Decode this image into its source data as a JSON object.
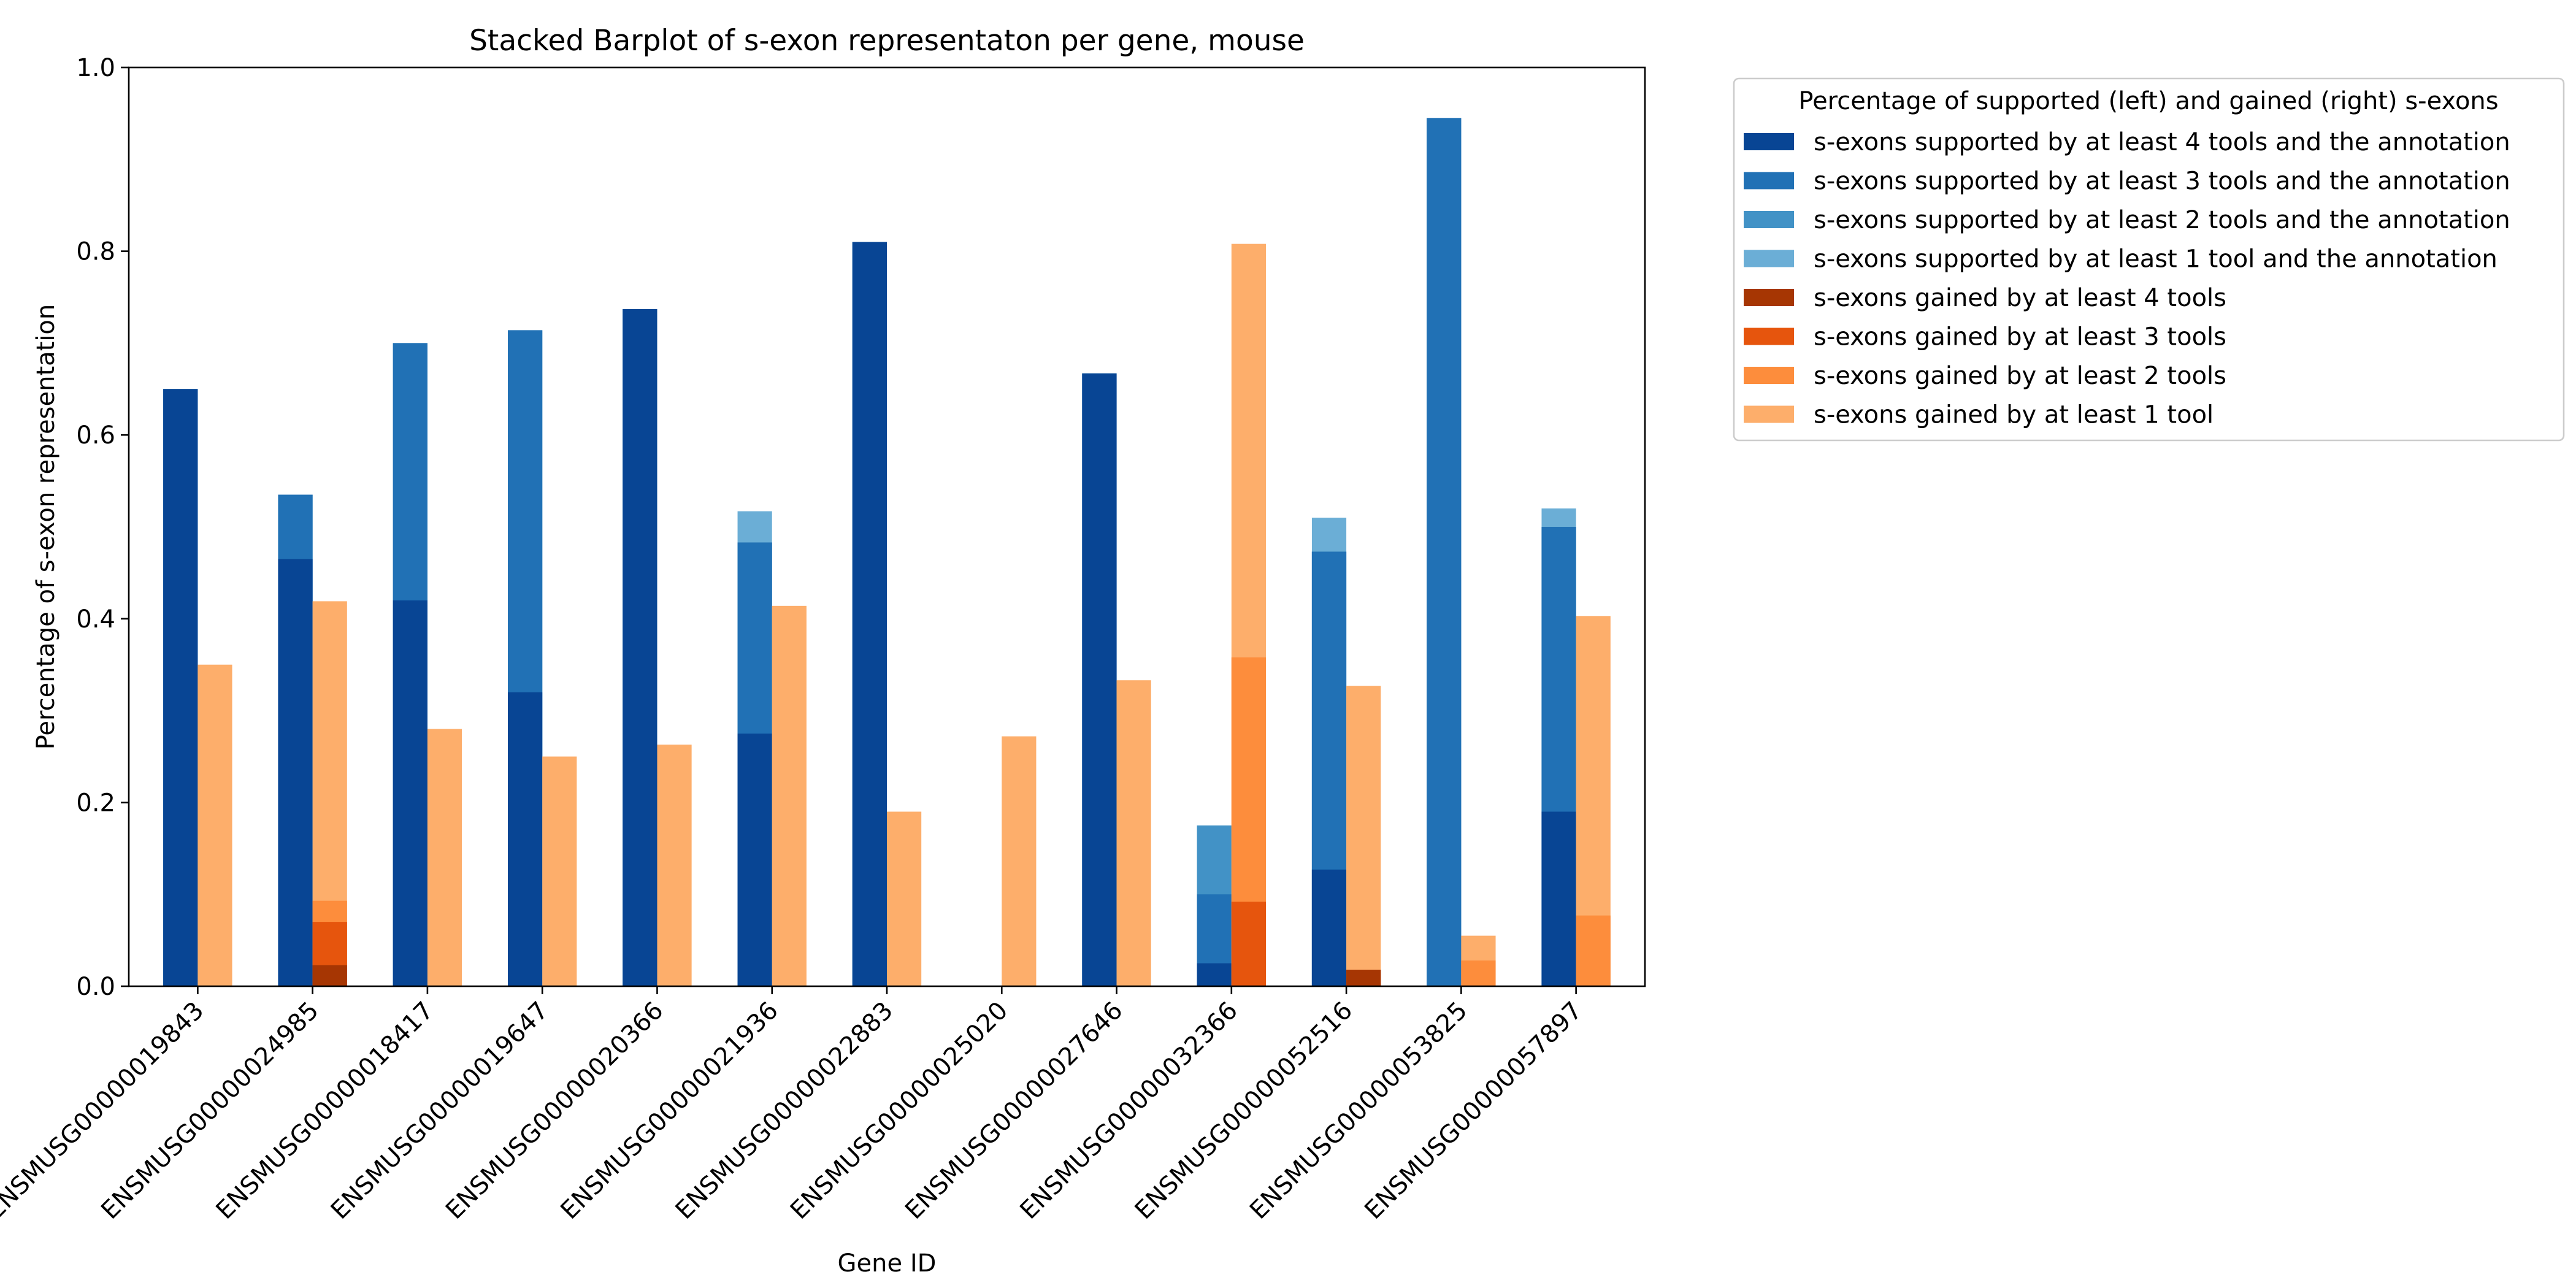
{
  "chart_data": {
    "type": "bar",
    "title": "Stacked Barplot of s-exon representaton per gene, mouse",
    "xlabel": "Gene ID",
    "ylabel": "Percentage of s-exon representation",
    "ylim": [
      0,
      1.0
    ],
    "yticks": [
      "0.0",
      "0.2",
      "0.4",
      "0.6",
      "0.8",
      "1.0"
    ],
    "grid": false,
    "legend_position": "outside-right",
    "legend_title": "Percentage of supported (left) and gained (right) s-exons",
    "categories": [
      "ENSMUSG00000019843",
      "ENSMUSG00000024985",
      "ENSMUSG00000018417",
      "ENSMUSG00000019647",
      "ENSMUSG00000020366",
      "ENSMUSG00000021936",
      "ENSMUSG00000022883",
      "ENSMUSG00000025020",
      "ENSMUSG00000027646",
      "ENSMUSG00000032366",
      "ENSMUSG00000052516",
      "ENSMUSG00000053825",
      "ENSMUSG00000057897"
    ],
    "supported_series": [
      {
        "name": "s-exons supported by at least 4 tools and the annotation",
        "color": "#084594",
        "values": [
          0.65,
          0.465,
          0.42,
          0.32,
          0.737,
          0.275,
          0.81,
          0.0,
          0.667,
          0.025,
          0.127,
          0.0,
          0.19
        ]
      },
      {
        "name": "s-exons supported by at least 3 tools and the annotation",
        "color": "#2171b5",
        "values": [
          0.65,
          0.535,
          0.7,
          0.714,
          0.737,
          0.483,
          0.81,
          0.0,
          0.667,
          0.1,
          0.473,
          0.945,
          0.5
        ]
      },
      {
        "name": "s-exons supported by at least 2 tools and the annotation",
        "color": "#4292c6",
        "values": [
          0.65,
          0.535,
          0.7,
          0.714,
          0.737,
          0.483,
          0.81,
          0.0,
          0.667,
          0.175,
          0.473,
          0.945,
          0.5
        ]
      },
      {
        "name": "s-exons supported by at least 1 tool and the annotation",
        "color": "#6baed6",
        "values": [
          0.65,
          0.535,
          0.7,
          0.714,
          0.737,
          0.517,
          0.81,
          0.0,
          0.667,
          0.175,
          0.51,
          0.945,
          0.52
        ]
      }
    ],
    "gained_series": [
      {
        "name": "s-exons gained by at least 4 tools",
        "color": "#a63603",
        "values": [
          0.0,
          0.023,
          0.0,
          0.0,
          0.0,
          0.0,
          0.0,
          0.0,
          0.0,
          0.0,
          0.018,
          0.0,
          0.0
        ]
      },
      {
        "name": "s-exons gained by at least 3 tools",
        "color": "#e6550d",
        "values": [
          0.0,
          0.07,
          0.0,
          0.0,
          0.0,
          0.0,
          0.0,
          0.0,
          0.0,
          0.092,
          0.018,
          0.0,
          0.0
        ]
      },
      {
        "name": "s-exons gained by at least 2 tools",
        "color": "#fd8d3c",
        "values": [
          0.0,
          0.093,
          0.0,
          0.0,
          0.0,
          0.0,
          0.0,
          0.0,
          0.0,
          0.358,
          0.018,
          0.028,
          0.077
        ]
      },
      {
        "name": "s-exons gained by at least 1 tool",
        "color": "#fdae6b",
        "values": [
          0.35,
          0.419,
          0.28,
          0.25,
          0.263,
          0.414,
          0.19,
          0.272,
          0.333,
          0.808,
          0.327,
          0.055,
          0.403
        ]
      }
    ]
  }
}
